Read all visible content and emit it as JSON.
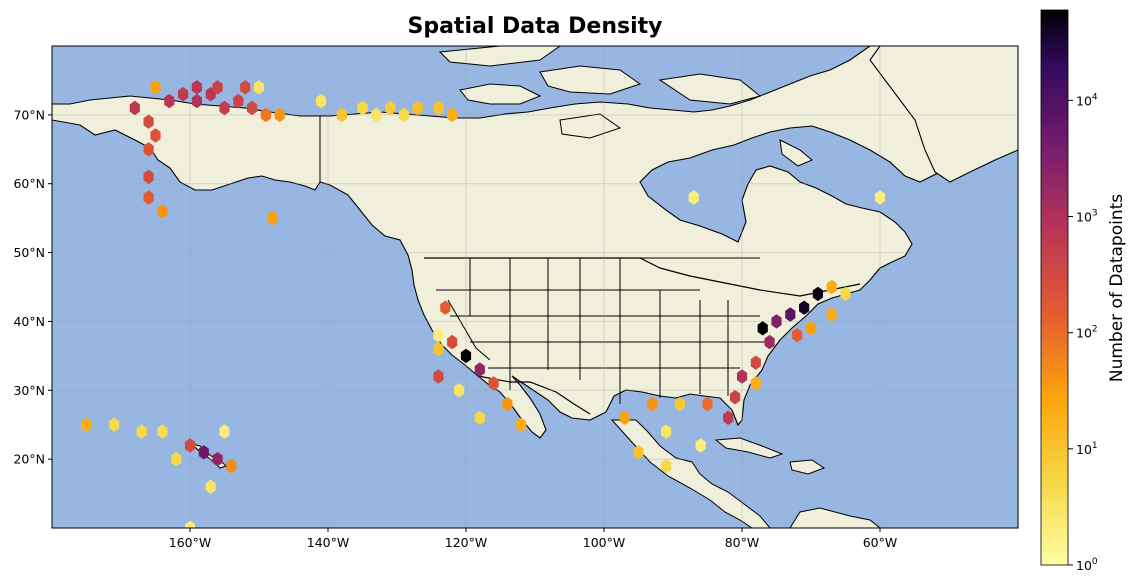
{
  "title": "Spatial Data Density",
  "colorbar": {
    "label": "Number of Datapoints",
    "scale": "log",
    "ticks": [
      {
        "base": "10",
        "exp": "0"
      },
      {
        "base": "10",
        "exp": "1"
      },
      {
        "base": "10",
        "exp": "2"
      },
      {
        "base": "10",
        "exp": "3"
      },
      {
        "base": "10",
        "exp": "4"
      }
    ],
    "range": [
      1,
      60000
    ],
    "colormap": "inferno_r"
  },
  "colors": {
    "ocean": "#97b6e1",
    "land": "#efefdb",
    "border": "#000000",
    "grid": "#9aa0a6"
  },
  "chart_data": {
    "type": "heatmap",
    "title": "Spatial Data Density",
    "x_ticks": [
      "160°W",
      "140°W",
      "120°W",
      "100°W",
      "80°W",
      "60°W"
    ],
    "y_ticks": [
      "20°N",
      "30°N",
      "40°N",
      "50°N",
      "60°N",
      "70°N"
    ],
    "xlim": [
      -180,
      -40
    ],
    "ylim": [
      10,
      80
    ],
    "grid": true,
    "bins": [
      {
        "lon": -165,
        "lat": 74,
        "count": 30
      },
      {
        "lon": -163,
        "lat": 72,
        "count": 800
      },
      {
        "lon": -161,
        "lat": 73,
        "count": 600
      },
      {
        "lon": -159,
        "lat": 72,
        "count": 900
      },
      {
        "lon": -157,
        "lat": 73,
        "count": 700
      },
      {
        "lon": -155,
        "lat": 71,
        "count": 500
      },
      {
        "lon": -153,
        "lat": 72,
        "count": 400
      },
      {
        "lon": -151,
        "lat": 71,
        "count": 300
      },
      {
        "lon": -149,
        "lat": 70,
        "count": 80
      },
      {
        "lon": -147,
        "lat": 70,
        "count": 40
      },
      {
        "lon": -159,
        "lat": 74,
        "count": 700
      },
      {
        "lon": -156,
        "lat": 74,
        "count": 400
      },
      {
        "lon": -152,
        "lat": 74,
        "count": 300
      },
      {
        "lon": -150,
        "lat": 74,
        "count": 3
      },
      {
        "lon": -168,
        "lat": 71,
        "count": 700
      },
      {
        "lon": -166,
        "lat": 69,
        "count": 300
      },
      {
        "lon": -165,
        "lat": 67,
        "count": 200
      },
      {
        "lon": -166,
        "lat": 65,
        "count": 200
      },
      {
        "lon": -166,
        "lat": 61,
        "count": 300
      },
      {
        "lon": -166,
        "lat": 58,
        "count": 150
      },
      {
        "lon": -164,
        "lat": 56,
        "count": 40
      },
      {
        "lon": -148,
        "lat": 55,
        "count": 30
      },
      {
        "lon": -141,
        "lat": 72,
        "count": 3
      },
      {
        "lon": -138,
        "lat": 70,
        "count": 10
      },
      {
        "lon": -135,
        "lat": 71,
        "count": 5
      },
      {
        "lon": -133,
        "lat": 70,
        "count": 3
      },
      {
        "lon": -131,
        "lat": 71,
        "count": 8
      },
      {
        "lon": -129,
        "lat": 70,
        "count": 5
      },
      {
        "lon": -127,
        "lat": 71,
        "count": 12
      },
      {
        "lon": -124,
        "lat": 71,
        "count": 10
      },
      {
        "lon": -122,
        "lat": 70,
        "count": 20
      },
      {
        "lon": -87,
        "lat": 58,
        "count": 2
      },
      {
        "lon": -60,
        "lat": 58,
        "count": 2
      },
      {
        "lon": -123,
        "lat": 42,
        "count": 150
      },
      {
        "lon": -124,
        "lat": 38,
        "count": 2
      },
      {
        "lon": -124,
        "lat": 36,
        "count": 10
      },
      {
        "lon": -122,
        "lat": 37,
        "count": 300
      },
      {
        "lon": -120,
        "lat": 35,
        "count": 60000
      },
      {
        "lon": -118,
        "lat": 33,
        "count": 2000
      },
      {
        "lon": -116,
        "lat": 31,
        "count": 200
      },
      {
        "lon": -114,
        "lat": 28,
        "count": 40
      },
      {
        "lon": -112,
        "lat": 25,
        "count": 20
      },
      {
        "lon": -118,
        "lat": 26,
        "count": 5
      },
      {
        "lon": -121,
        "lat": 30,
        "count": 3
      },
      {
        "lon": -124,
        "lat": 32,
        "count": 300
      },
      {
        "lon": -89,
        "lat": 28,
        "count": 8
      },
      {
        "lon": -93,
        "lat": 28,
        "count": 40
      },
      {
        "lon": -97,
        "lat": 26,
        "count": 30
      },
      {
        "lon": -91,
        "lat": 24,
        "count": 3
      },
      {
        "lon": -95,
        "lat": 21,
        "count": 10
      },
      {
        "lon": -91,
        "lat": 19,
        "count": 5
      },
      {
        "lon": -86,
        "lat": 22,
        "count": 2
      },
      {
        "lon": -85,
        "lat": 28,
        "count": 100
      },
      {
        "lon": -82,
        "lat": 26,
        "count": 600
      },
      {
        "lon": -81,
        "lat": 29,
        "count": 400
      },
      {
        "lon": -80,
        "lat": 32,
        "count": 900
      },
      {
        "lon": -78,
        "lat": 34,
        "count": 300
      },
      {
        "lon": -76,
        "lat": 37,
        "count": 1500
      },
      {
        "lon": -75,
        "lat": 40,
        "count": 3000
      },
      {
        "lon": -73,
        "lat": 41,
        "count": 8000
      },
      {
        "lon": -71,
        "lat": 42,
        "count": 40000
      },
      {
        "lon": -69,
        "lat": 44,
        "count": 50000
      },
      {
        "lon": -67,
        "lat": 45,
        "count": 20
      },
      {
        "lon": -65,
        "lat": 44,
        "count": 5
      },
      {
        "lon": -77,
        "lat": 39,
        "count": 60000
      },
      {
        "lon": -72,
        "lat": 38,
        "count": 150
      },
      {
        "lon": -70,
        "lat": 39,
        "count": 30
      },
      {
        "lon": -67,
        "lat": 41,
        "count": 20
      },
      {
        "lon": -78,
        "lat": 31,
        "count": 20
      },
      {
        "lon": -160,
        "lat": 22,
        "count": 300
      },
      {
        "lon": -158,
        "lat": 21,
        "count": 5000
      },
      {
        "lon": -156,
        "lat": 20,
        "count": 2000
      },
      {
        "lon": -154,
        "lat": 19,
        "count": 50
      },
      {
        "lon": -162,
        "lat": 20,
        "count": 5
      },
      {
        "lon": -155,
        "lat": 24,
        "count": 2
      },
      {
        "lon": -157,
        "lat": 16,
        "count": 3
      },
      {
        "lon": -171,
        "lat": 25,
        "count": 5
      },
      {
        "lon": -167,
        "lat": 24,
        "count": 5
      },
      {
        "lon": -175,
        "lat": 25,
        "count": 20
      },
      {
        "lon": -164,
        "lat": 24,
        "count": 4
      },
      {
        "lon": -160,
        "lat": 10,
        "count": 2
      }
    ]
  }
}
